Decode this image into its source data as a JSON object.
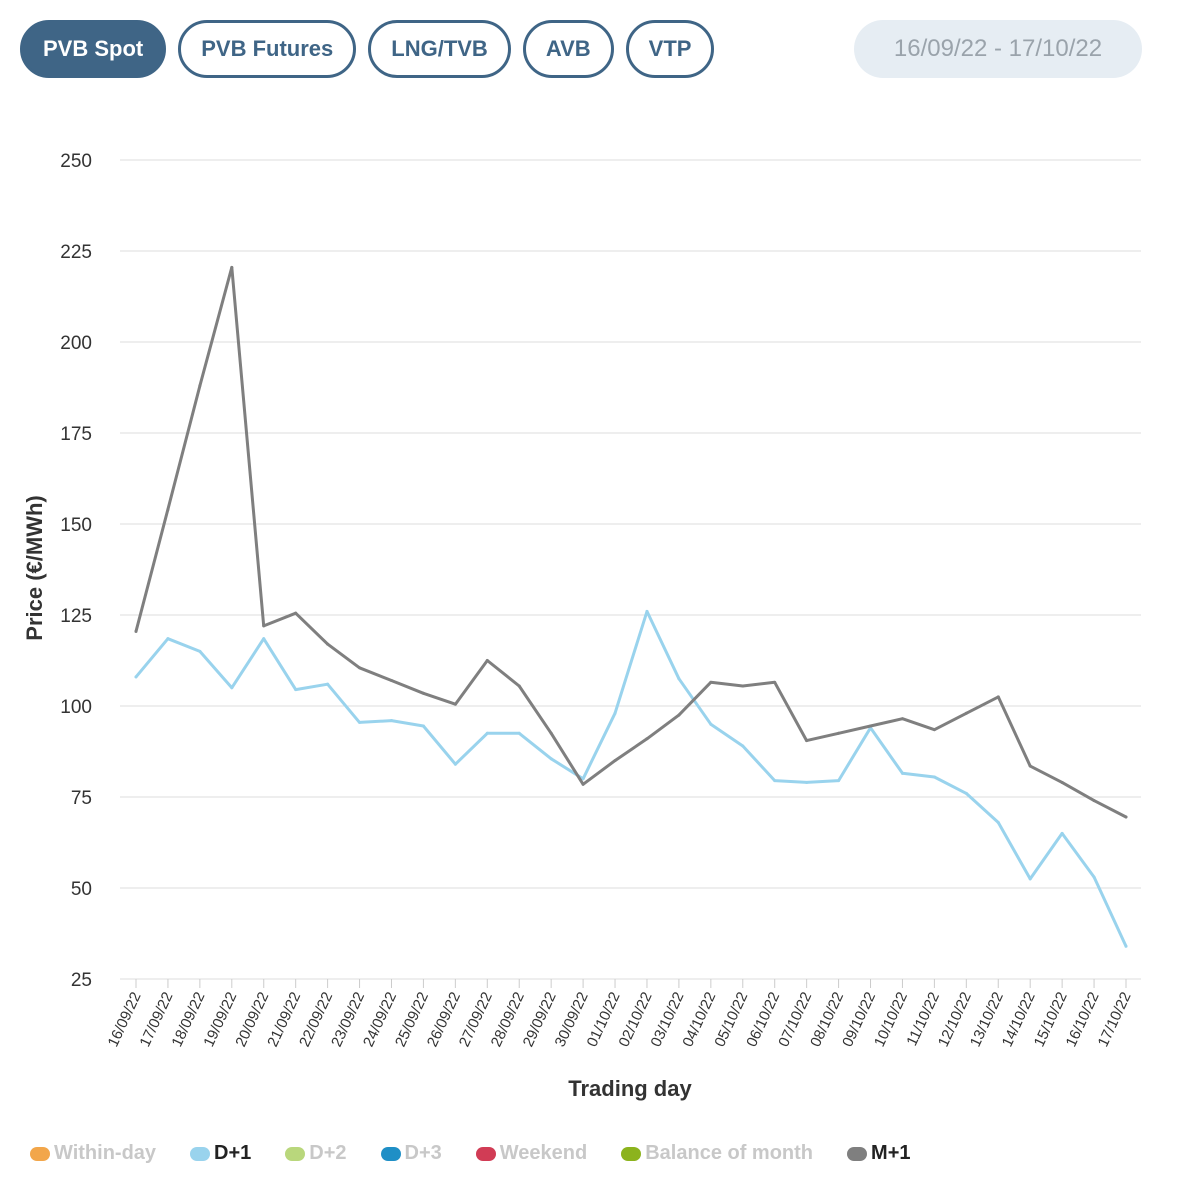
{
  "tabs": [
    {
      "label": "PVB Spot",
      "active": true
    },
    {
      "label": "PVB Futures",
      "active": false
    },
    {
      "label": "LNG/TVB",
      "active": false
    },
    {
      "label": "AVB",
      "active": false
    },
    {
      "label": "VTP",
      "active": false
    }
  ],
  "date_range": "16/09/22 - 17/10/22",
  "colors": {
    "accent": "#3f6586",
    "grid": "#dddddd"
  },
  "legend": [
    {
      "label": "Within-day",
      "color": "#f2a64a",
      "active": false
    },
    {
      "label": "D+1",
      "color": "#99d3ed",
      "active": true
    },
    {
      "label": "D+2",
      "color": "#b9d77c",
      "active": false
    },
    {
      "label": "D+3",
      "color": "#1f8fc6",
      "active": false
    },
    {
      "label": "Weekend",
      "color": "#d13c55",
      "active": false
    },
    {
      "label": "Balance of month",
      "color": "#8cb31d",
      "active": false
    },
    {
      "label": "M+1",
      "color": "#7f7f7f",
      "active": true
    }
  ],
  "chart_data": {
    "type": "line",
    "xlabel": "Trading day",
    "ylabel": "Price (€/MWh)",
    "ylim": [
      25,
      250
    ],
    "yticks": [
      25,
      50,
      75,
      100,
      125,
      150,
      175,
      200,
      225,
      250
    ],
    "grid": true,
    "legend_position": "bottom",
    "categories": [
      "16/09/22",
      "17/09/22",
      "18/09/22",
      "19/09/22",
      "20/09/22",
      "21/09/22",
      "22/09/22",
      "23/09/22",
      "24/09/22",
      "25/09/22",
      "26/09/22",
      "27/09/22",
      "28/09/22",
      "29/09/22",
      "30/09/22",
      "01/10/22",
      "02/10/22",
      "03/10/22",
      "04/10/22",
      "05/10/22",
      "06/10/22",
      "07/10/22",
      "08/10/22",
      "09/10/22",
      "10/10/22",
      "11/10/22",
      "12/10/22",
      "13/10/22",
      "14/10/22",
      "15/10/22",
      "16/10/22",
      "17/10/22"
    ],
    "series": [
      {
        "name": "D+1",
        "color": "#99d3ed",
        "values": [
          108,
          118.5,
          115,
          105,
          118.5,
          104.5,
          106,
          95.5,
          96,
          94.5,
          84,
          92.5,
          92.5,
          85.5,
          80,
          98,
          126,
          107.5,
          95,
          89,
          79.5,
          79,
          79.5,
          94,
          81.5,
          80.5,
          76,
          68,
          52.5,
          65,
          53,
          34
        ]
      },
      {
        "name": "M+1",
        "color": "#7f7f7f",
        "values": [
          120.5,
          154,
          188,
          220.5,
          122,
          125.5,
          117,
          110.5,
          107,
          103.5,
          100.5,
          112.5,
          105.5,
          92.5,
          78.5,
          85,
          91,
          97.5,
          106.5,
          105.5,
          106.5,
          90.5,
          92.5,
          94.5,
          96.5,
          93.5,
          98,
          102.5,
          83.5,
          79,
          74,
          69.5
        ]
      }
    ]
  }
}
